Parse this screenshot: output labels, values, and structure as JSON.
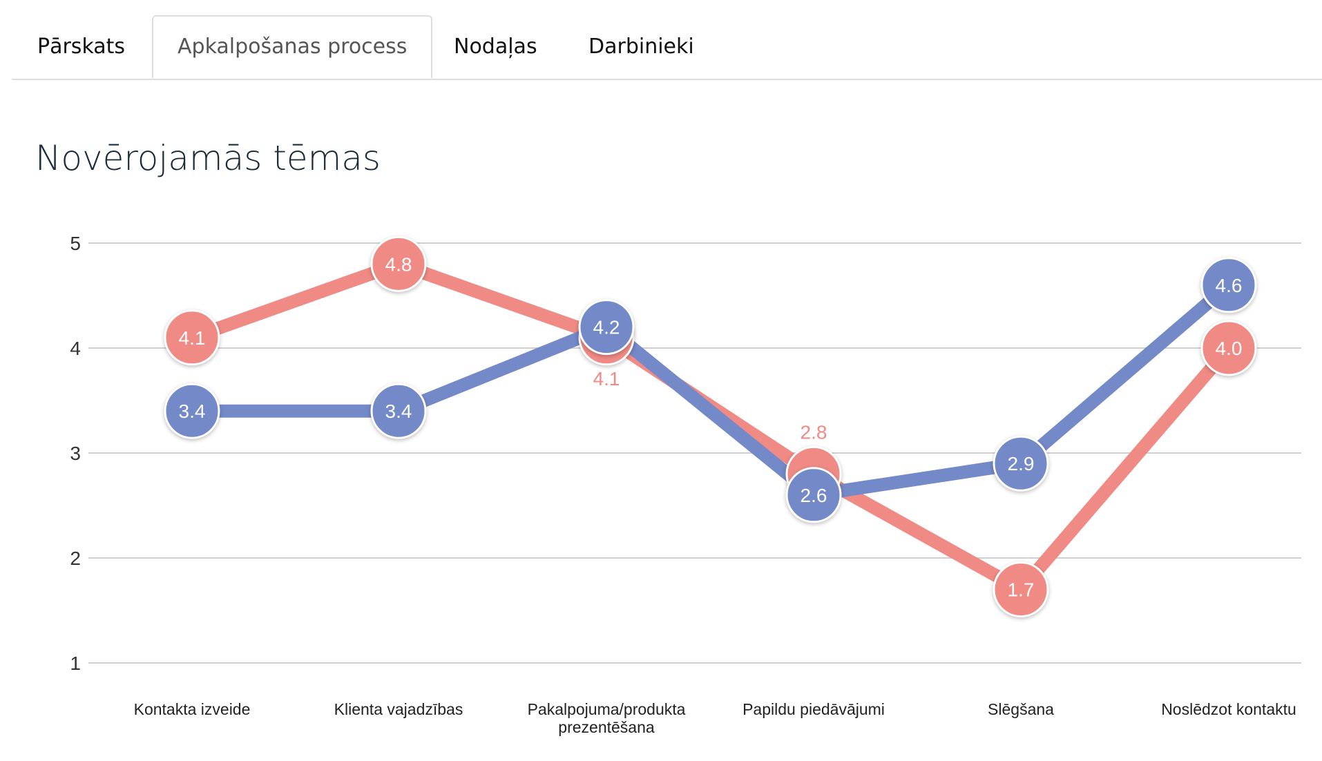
{
  "tabs": [
    {
      "label": "Pārskats",
      "active": false
    },
    {
      "label": "Apkalpošanas process",
      "active": true
    },
    {
      "label": "Nodaļas",
      "active": false
    },
    {
      "label": "Darbinieki",
      "active": false
    }
  ],
  "chart_data": {
    "type": "line",
    "title": "Novērojamās tēmas",
    "categories": [
      [
        "Kontakta izveide"
      ],
      [
        "Klienta vajadzības"
      ],
      [
        "Pakalpojuma/produkta",
        "prezentēšana"
      ],
      [
        "Papildu piedāvājumi"
      ],
      [
        "Slēgšana"
      ],
      [
        "Noslēdzot kontaktu"
      ]
    ],
    "ylim": [
      1,
      5
    ],
    "yticks": [
      "1",
      "2",
      "3",
      "4",
      "5"
    ],
    "grid": true,
    "series": [
      {
        "color": "#f08a85",
        "values": [
          4.1,
          4.8,
          4.1,
          2.8,
          1.7,
          4.0
        ]
      },
      {
        "color": "#7489c8",
        "values": [
          3.4,
          3.4,
          4.2,
          2.6,
          2.9,
          4.6
        ]
      }
    ]
  }
}
